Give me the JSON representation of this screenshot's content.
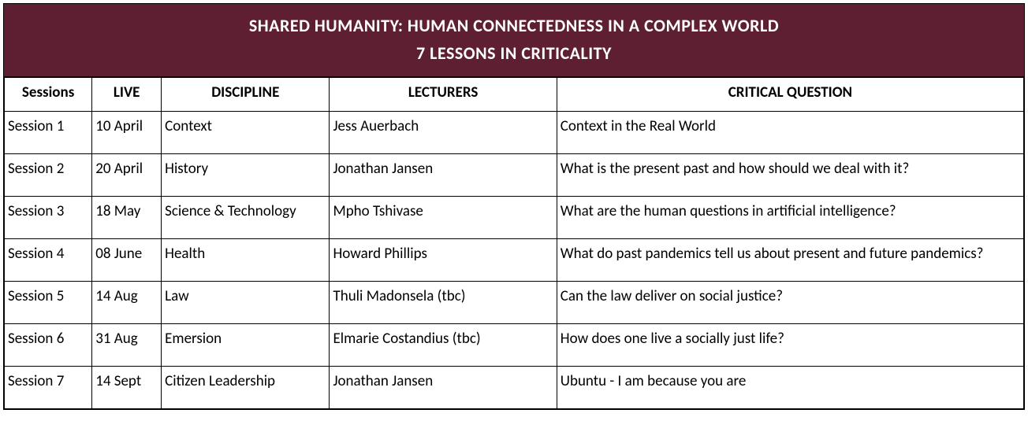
{
  "title_line1": "SHARED HUMANITY: HUMAN CONNECTEDNESS IN A COMPLEX WORLD",
  "title_line2": "7 LESSONS IN CRITICALITY",
  "headers": {
    "sessions": "Sessions",
    "live": "LIVE",
    "discipline": "DISCIPLINE",
    "lecturers": "LECTURERS",
    "question": "CRITICAL QUESTION"
  },
  "rows": [
    {
      "session": "Session 1",
      "live": "10 April",
      "discipline": "Context",
      "lecturer": "Jess Auerbach",
      "question": "Context in the Real World"
    },
    {
      "session": "Session 2",
      "live": "20 April",
      "discipline": "History",
      "lecturer": "Jonathan Jansen",
      "question": "What is the present past and how should we deal with it?"
    },
    {
      "session": "Session 3",
      "live": "18 May",
      "discipline": "Science & Technology",
      "lecturer": "Mpho Tshivase",
      "question": "What are the human questions in artificial intelligence?"
    },
    {
      "session": "Session 4",
      "live": "08 June",
      "discipline": "Health",
      "lecturer": "Howard Phillips",
      "question": "What do past pandemics tell us about present and future pandemics?"
    },
    {
      "session": "Session 5",
      "live": "14 Aug",
      "discipline": "Law",
      "lecturer": "Thuli Madonsela (tbc)",
      "question": "Can the law deliver on social justice?"
    },
    {
      "session": "Session 6",
      "live": "31 Aug",
      "discipline": "Emersion",
      "lecturer": "Elmarie Costandius (tbc)",
      "question": "How does one live a socially just life?"
    },
    {
      "session": "Session 7",
      "live": "14 Sept",
      "discipline": "Citizen Leadership",
      "lecturer": "Jonathan Jansen",
      "question": "Ubuntu - I am because you are"
    }
  ],
  "styling": {
    "title_bg": "#5e1f33",
    "title_color": "#ffffff",
    "border_color": "#000000",
    "cell_bg": "#ffffff",
    "font_family": "Gill Sans",
    "title_fontsize": 22,
    "cell_fontsize": 19,
    "column_widths_pct": {
      "sessions": 8.6,
      "live": 6.8,
      "discipline": 16.5,
      "lecturers": 22.3,
      "question": 45.8
    }
  }
}
